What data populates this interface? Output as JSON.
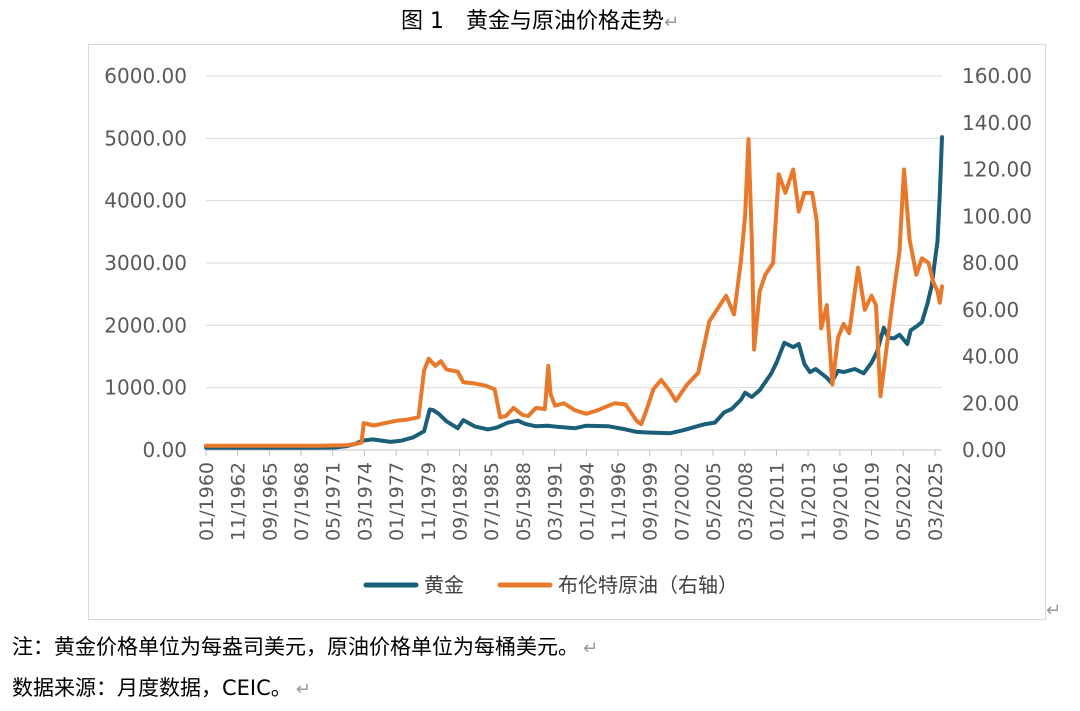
{
  "figure_caption": "图 1　黄金与原油价格走势",
  "return_mark": "↵",
  "chart_data": {
    "type": "line",
    "title": "图 1　黄金与原油价格走势",
    "xlabel": "",
    "ylabel": "",
    "ylim": [
      0,
      6000
    ],
    "y2lim": [
      0,
      160
    ],
    "y_ticks": [
      "0.00",
      "1000.00",
      "2000.00",
      "3000.00",
      "4000.00",
      "5000.00",
      "6000.00"
    ],
    "y2_ticks": [
      "0.00",
      "20.00",
      "40.00",
      "60.00",
      "80.00",
      "100.00",
      "120.00",
      "140.00",
      "160.00"
    ],
    "x_tick_labels": [
      "01/1960",
      "11/1962",
      "09/1965",
      "07/1968",
      "05/1971",
      "03/1974",
      "01/1977",
      "11/1979",
      "09/1982",
      "07/1985",
      "05/1988",
      "03/1991",
      "01/1994",
      "11/1996",
      "09/1999",
      "07/2002",
      "05/2005",
      "03/2008",
      "01/2011",
      "11/2013",
      "09/2016",
      "07/2019",
      "05/2022",
      "03/2025"
    ],
    "x_tick_values": [
      1960.0,
      1962.83,
      1965.67,
      1968.5,
      1971.33,
      1974.17,
      1977.0,
      1979.83,
      1982.67,
      1985.5,
      1988.33,
      1991.17,
      1994.0,
      1996.83,
      1999.67,
      2002.5,
      2005.33,
      2008.17,
      2011.0,
      2013.83,
      2016.67,
      2019.5,
      2022.33,
      2025.17
    ],
    "xlim": [
      1960.0,
      2025.8
    ],
    "grid": true,
    "legend_position": "bottom",
    "series": [
      {
        "name": "黄金",
        "axis": "left",
        "color": "#1b5e7a",
        "x": [
          1960,
          1968,
          1970,
          1971.5,
          1972.5,
          1973.3,
          1974,
          1974.9,
          1976.5,
          1977.5,
          1978.5,
          1979.5,
          1980.0,
          1980.3,
          1980.8,
          1981.5,
          1982.5,
          1983.0,
          1984.0,
          1985.2,
          1986.0,
          1987.0,
          1987.9,
          1988.5,
          1989.5,
          1990.5,
          1991.5,
          1993.0,
          1994.0,
          1996.0,
          1997.5,
          1998.5,
          1999.5,
          2000.5,
          2001.5,
          2002.5,
          2003.5,
          2004.5,
          2005.5,
          2006.3,
          2007.0,
          2007.8,
          2008.2,
          2008.8,
          2009.5,
          2010.5,
          2011.0,
          2011.7,
          2012.5,
          2013.0,
          2013.5,
          2014.0,
          2014.5,
          2015.5,
          2015.9,
          2016.5,
          2017.0,
          2018.0,
          2018.8,
          2019.5,
          2020.0,
          2020.6,
          2021.0,
          2021.5,
          2022.0,
          2022.7,
          2023.0,
          2023.5,
          2024.0,
          2024.5,
          2024.9,
          2025.1,
          2025.4,
          2025.6,
          2025.8
        ],
        "values": [
          35,
          35,
          38,
          40,
          60,
          95,
          150,
          170,
          130,
          150,
          200,
          300,
          650,
          640,
          580,
          460,
          350,
          480,
          380,
          330,
          360,
          440,
          470,
          420,
          380,
          390,
          370,
          350,
          390,
          380,
          330,
          290,
          280,
          275,
          270,
          310,
          360,
          410,
          440,
          600,
          660,
          800,
          920,
          850,
          960,
          1220,
          1400,
          1720,
          1650,
          1700,
          1380,
          1250,
          1300,
          1160,
          1080,
          1270,
          1250,
          1300,
          1230,
          1400,
          1580,
          1960,
          1800,
          1790,
          1850,
          1700,
          1920,
          1980,
          2050,
          2350,
          2650,
          2950,
          3350,
          4100,
          5020
        ]
      },
      {
        "name": "布伦特原油（右轴）",
        "axis": "right",
        "color": "#e8782a",
        "x": [
          1960,
          1970,
          1972.5,
          1973.6,
          1973.9,
          1974.1,
          1975,
          1976,
          1977,
          1978,
          1979.0,
          1979.5,
          1979.9,
          1980.5,
          1981.0,
          1981.5,
          1982.5,
          1983.0,
          1984.0,
          1985.0,
          1985.8,
          1986.3,
          1986.8,
          1987.5,
          1988.3,
          1988.8,
          1989.5,
          1990.3,
          1990.6,
          1990.8,
          1991.2,
          1992.0,
          1993.0,
          1994.0,
          1995.0,
          1996.5,
          1997.5,
          1998.5,
          1998.9,
          1999.3,
          2000.0,
          2000.7,
          2001.5,
          2002.0,
          2003.0,
          2004.0,
          2005.0,
          2006.5,
          2007.2,
          2007.8,
          2008.2,
          2008.5,
          2008.8,
          2009.0,
          2009.5,
          2010.0,
          2010.7,
          2011.2,
          2011.8,
          2012.5,
          2013.0,
          2013.5,
          2014.2,
          2014.6,
          2015.0,
          2015.5,
          2016.0,
          2016.5,
          2017.0,
          2017.5,
          2018.3,
          2018.9,
          2019.5,
          2019.9,
          2020.3,
          2020.8,
          2021.5,
          2022.0,
          2022.4,
          2022.9,
          2023.5,
          2024.0,
          2024.6,
          2025.0,
          2025.4,
          2025.6,
          2025.8
        ],
        "values": [
          1.8,
          1.8,
          2.0,
          2.8,
          3.2,
          11.5,
          10.5,
          11.5,
          12.5,
          13.0,
          14.0,
          34.0,
          39.0,
          36.0,
          38.0,
          34.5,
          33.5,
          29.0,
          28.5,
          27.5,
          26.0,
          14.0,
          14.5,
          18.0,
          15.0,
          14.5,
          18.0,
          17.5,
          36.0,
          24.0,
          19.0,
          20.0,
          17.0,
          15.5,
          17.0,
          20.0,
          19.5,
          12.5,
          11.0,
          16.0,
          26.0,
          30.0,
          25.0,
          21.0,
          28.0,
          33.0,
          55.0,
          66.0,
          58.0,
          80.0,
          100.0,
          133.0,
          90.0,
          43.0,
          68.0,
          75.0,
          80.0,
          118.0,
          110.0,
          120.0,
          102.0,
          110.0,
          110.0,
          98.0,
          52.0,
          62.0,
          28.0,
          48.0,
          54.0,
          50.0,
          78.0,
          60.0,
          66.0,
          62.0,
          23.0,
          42.0,
          68.0,
          85.0,
          120.0,
          90.0,
          75.0,
          82.0,
          80.0,
          72.0,
          68.0,
          63.0,
          70.0
        ]
      }
    ]
  },
  "footnote": "注：黄金价格单位为每盎司美元，原油价格单位为每桶美元。",
  "source_note": "数据来源：月度数据，CEIC。"
}
